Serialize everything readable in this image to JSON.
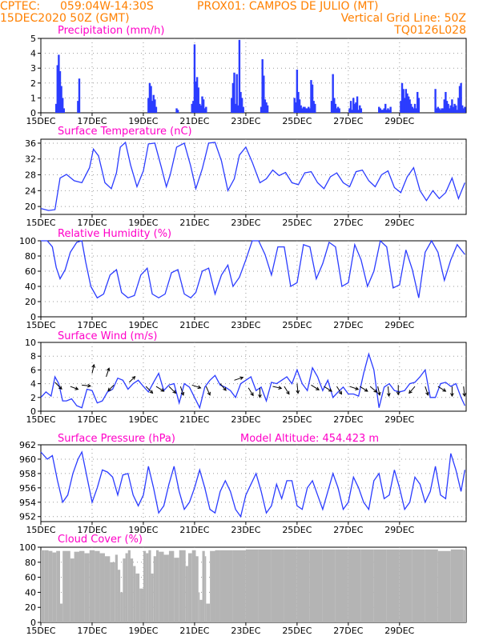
{
  "header": {
    "line1_left": "CPTEC:",
    "line1_coords": "059:04W-14:30S",
    "line1_station": "PROX01: CAMPOS DE JULIO (MT)",
    "line2_left": "15DEC2020 50Z (GMT)",
    "line2_right": "Vertical Grid Line: 50Z",
    "line3_right": "TQ0126L028"
  },
  "colors": {
    "header": "#ff8000",
    "title": "#ff00c8",
    "series": "#2b3cff",
    "cloud": "#b4b4b4",
    "arrow": "#000000"
  },
  "x_labels": [
    "15DEC",
    "17DEC",
    "19DEC",
    "21DEC",
    "23DEC",
    "25DEC",
    "27DEC",
    "29DEC"
  ],
  "chart_data": [
    {
      "type": "bar",
      "title": "Precipitation (mm/h)",
      "ylim": [
        0,
        5
      ],
      "yticks": [
        0,
        1,
        2,
        3,
        4,
        5
      ],
      "grid": true,
      "x_units": "days since 15DEC 00Z",
      "x": [
        0.6,
        0.65,
        0.7,
        0.75,
        0.8,
        0.85,
        0.9,
        1.45,
        1.5,
        4.2,
        4.25,
        4.3,
        4.35,
        4.4,
        4.45,
        4.5,
        5.3,
        5.35,
        5.9,
        5.95,
        6.0,
        6.05,
        6.1,
        6.15,
        6.2,
        6.25,
        6.3,
        6.35,
        6.4,
        6.45,
        7.45,
        7.5,
        7.55,
        7.6,
        7.65,
        7.7,
        7.75,
        7.8,
        7.85,
        7.9,
        8.6,
        8.65,
        8.7,
        8.75,
        8.8,
        8.85,
        9.9,
        9.95,
        10.0,
        10.05,
        10.1,
        10.15,
        10.2,
        10.25,
        10.3,
        10.35,
        10.4,
        10.45,
        10.5,
        10.55,
        10.6,
        10.65,
        10.7,
        11.35,
        11.4,
        11.45,
        11.5,
        11.55,
        11.6,
        11.65,
        12.05,
        12.1,
        12.15,
        12.2,
        12.25,
        12.3,
        12.35,
        12.4,
        12.45,
        12.5,
        13.2,
        13.25,
        13.3,
        13.35,
        13.4,
        13.45,
        13.5,
        13.55,
        13.6,
        13.65,
        14.05,
        14.1,
        14.15,
        14.2,
        14.25,
        14.3,
        14.35,
        14.4,
        14.45,
        14.5,
        14.55,
        14.6,
        14.65,
        14.7,
        14.75,
        15.4,
        15.45,
        15.5,
        15.55,
        15.6,
        15.65,
        15.7,
        15.75,
        15.8,
        15.85,
        15.9,
        15.95,
        16.0,
        16.05,
        16.1,
        16.15,
        16.2,
        16.25,
        16.3,
        16.35,
        16.4,
        16.45,
        16.5,
        16.55
      ],
      "values": [
        0.6,
        3.2,
        3.9,
        2.8,
        1.8,
        1.0,
        0.3,
        0.8,
        2.3,
        1.0,
        2.0,
        1.8,
        0.8,
        1.2,
        0.9,
        0.4,
        0.3,
        0.2,
        0.6,
        0.8,
        4.6,
        2.1,
        2.4,
        1.7,
        0.6,
        0.5,
        1.1,
        0.9,
        0.3,
        0.4,
        1.0,
        2.0,
        2.7,
        0.6,
        2.6,
        0.5,
        4.9,
        1.4,
        1.0,
        0.4,
        0.4,
        3.6,
        2.5,
        0.9,
        0.7,
        0.5,
        1.0,
        0.7,
        2.9,
        1.4,
        0.9,
        0.5,
        0.3,
        0.4,
        0.4,
        0.3,
        0.3,
        0.4,
        0.3,
        2.2,
        1.9,
        0.8,
        0.6,
        0.8,
        2.6,
        1.0,
        0.6,
        0.3,
        0.4,
        0.3,
        0.3,
        0.8,
        0.2,
        1.0,
        0.6,
        0.7,
        1.1,
        0.2,
        0.5,
        0.3,
        0.4,
        0.3,
        0.2,
        0.2,
        0.3,
        0.6,
        0.2,
        0.3,
        0.2,
        0.4,
        0.8,
        2.0,
        1.6,
        1.0,
        1.6,
        1.3,
        1.1,
        0.9,
        0.6,
        0.4,
        0.3,
        0.6,
        0.3,
        1.4,
        1.0,
        1.6,
        0.3,
        0.4,
        0.3,
        0.2,
        0.3,
        0.3,
        0.9,
        1.4,
        0.8,
        0.6,
        0.3,
        0.5,
        0.9,
        0.4,
        0.6,
        0.5,
        0.2,
        1.0,
        1.8,
        2.0,
        0.5,
        0.3,
        0.4
      ]
    },
    {
      "type": "line",
      "title": "Surface Temperature (nC)",
      "ylim": [
        18,
        37
      ],
      "yticks": [
        20,
        24,
        28,
        32,
        36
      ],
      "grid": true,
      "x_units": "days since 15DEC 00Z",
      "x": [
        0.0,
        0.3,
        0.55,
        0.75,
        1.0,
        1.3,
        1.6,
        1.9,
        2.05,
        2.25,
        2.5,
        2.75,
        2.95,
        3.1,
        3.3,
        3.5,
        3.75,
        4.0,
        4.2,
        4.45,
        4.7,
        4.9,
        5.05,
        5.3,
        5.6,
        5.85,
        6.05,
        6.3,
        6.55,
        6.8,
        7.05,
        7.3,
        7.55,
        7.75,
        8.0,
        8.25,
        8.55,
        8.8,
        9.05,
        9.3,
        9.55,
        9.8,
        10.05,
        10.3,
        10.55,
        10.8,
        11.05,
        11.3,
        11.55,
        11.8,
        12.05,
        12.3,
        12.55,
        12.8,
        13.05,
        13.3,
        13.55,
        13.8,
        14.05,
        14.3,
        14.55,
        14.8,
        15.05,
        15.3,
        15.55,
        15.8,
        16.05,
        16.3,
        16.55
      ],
      "values": [
        19.5,
        19.0,
        19.2,
        27.2,
        28.1,
        26.5,
        26.0,
        29.8,
        34.5,
        32.8,
        26.0,
        24.5,
        28.5,
        35.0,
        36.2,
        30.5,
        25.0,
        29.0,
        35.8,
        36.0,
        30.0,
        25.0,
        28.0,
        35.0,
        36.0,
        30.2,
        24.5,
        29.5,
        36.0,
        36.2,
        31.5,
        24.0,
        27.0,
        33.0,
        35.0,
        31.2,
        26.0,
        27.0,
        29.2,
        27.8,
        28.6,
        26.0,
        25.5,
        28.5,
        28.8,
        26.0,
        24.5,
        27.5,
        28.5,
        26.0,
        25.0,
        28.8,
        29.2,
        26.5,
        25.0,
        28.0,
        29.0,
        24.8,
        23.5,
        27.5,
        29.8,
        24.0,
        21.5,
        24.0,
        22.0,
        23.5,
        27.2,
        22.0,
        26.0
      ]
    },
    {
      "type": "line",
      "title": "Relative Humidity (%)",
      "ylim": [
        0,
        100
      ],
      "yticks": [
        0,
        20,
        40,
        60,
        80,
        100
      ],
      "grid": true,
      "x_units": "days since 15DEC 00Z",
      "x": [
        0.0,
        0.25,
        0.45,
        0.6,
        0.75,
        0.95,
        1.15,
        1.4,
        1.6,
        1.75,
        1.95,
        2.2,
        2.45,
        2.7,
        2.95,
        3.15,
        3.4,
        3.65,
        3.9,
        4.15,
        4.35,
        4.6,
        4.85,
        5.1,
        5.35,
        5.6,
        5.85,
        6.05,
        6.3,
        6.55,
        6.8,
        7.05,
        7.3,
        7.5,
        7.75,
        8.0,
        8.25,
        8.5,
        8.75,
        9.0,
        9.25,
        9.5,
        9.75,
        10.0,
        10.25,
        10.5,
        10.75,
        11.0,
        11.25,
        11.5,
        11.75,
        12.0,
        12.25,
        12.5,
        12.75,
        13.0,
        13.25,
        13.5,
        13.75,
        14.0,
        14.25,
        14.5,
        14.75,
        15.0,
        15.25,
        15.5,
        15.75,
        16.0,
        16.25,
        16.55
      ],
      "values": [
        100,
        100,
        92,
        65,
        50,
        62,
        85,
        98,
        100,
        72,
        40,
        25,
        30,
        55,
        62,
        32,
        25,
        28,
        55,
        64,
        30,
        25,
        30,
        58,
        62,
        30,
        25,
        32,
        60,
        64,
        30,
        55,
        68,
        40,
        52,
        75,
        100,
        100,
        82,
        55,
        92,
        92,
        40,
        45,
        95,
        92,
        50,
        70,
        98,
        92,
        40,
        45,
        95,
        75,
        40,
        60,
        100,
        92,
        38,
        42,
        88,
        62,
        25,
        85,
        100,
        85,
        48,
        75,
        95,
        82
      ]
    },
    {
      "type": "line",
      "title": "Surface Wind (m/s)",
      "ylim": [
        0,
        10
      ],
      "yticks": [
        0,
        2,
        4,
        6,
        8,
        10
      ],
      "grid": true,
      "x_units": "days since 15DEC 00Z",
      "x": [
        0.0,
        0.2,
        0.4,
        0.55,
        0.7,
        0.85,
        1.0,
        1.2,
        1.4,
        1.6,
        1.8,
        2.0,
        2.2,
        2.4,
        2.6,
        2.8,
        3.0,
        3.2,
        3.4,
        3.6,
        3.8,
        4.0,
        4.2,
        4.4,
        4.6,
        4.8,
        5.0,
        5.2,
        5.4,
        5.6,
        5.8,
        6.0,
        6.2,
        6.4,
        6.6,
        6.8,
        7.0,
        7.2,
        7.4,
        7.6,
        7.8,
        8.0,
        8.2,
        8.4,
        8.6,
        8.8,
        9.0,
        9.2,
        9.4,
        9.6,
        9.8,
        10.0,
        10.2,
        10.4,
        10.6,
        10.8,
        11.0,
        11.2,
        11.4,
        11.6,
        11.8,
        12.0,
        12.2,
        12.4,
        12.6,
        12.8,
        13.0,
        13.2,
        13.4,
        13.6,
        13.8,
        14.0,
        14.2,
        14.4,
        14.6,
        14.8,
        15.0,
        15.2,
        15.4,
        15.6,
        15.8,
        16.0,
        16.2,
        16.4,
        16.55
      ],
      "values": [
        2.0,
        2.8,
        2.2,
        5.0,
        4.0,
        1.5,
        1.5,
        1.8,
        0.8,
        0.5,
        3.2,
        3.0,
        1.2,
        1.5,
        2.8,
        3.2,
        4.8,
        4.5,
        3.2,
        4.0,
        4.5,
        3.6,
        2.8,
        4.2,
        5.5,
        3.0,
        3.8,
        4.0,
        1.2,
        4.0,
        3.5,
        2.0,
        0.5,
        3.5,
        4.5,
        5.2,
        3.8,
        3.5,
        3.0,
        2.0,
        4.0,
        4.5,
        5.0,
        3.0,
        3.5,
        1.5,
        4.2,
        4.0,
        4.5,
        5.0,
        4.0,
        6.0,
        4.0,
        3.0,
        6.3,
        5.0,
        3.0,
        4.5,
        2.0,
        2.8,
        3.5,
        2.5,
        2.5,
        2.2,
        5.5,
        8.3,
        6.0,
        0.5,
        3.5,
        4.0,
        3.0,
        2.8,
        3.0,
        4.0,
        4.2,
        5.0,
        6.0,
        2.0,
        2.0,
        4.0,
        4.2,
        3.6,
        4.0,
        2.0,
        0.8
      ],
      "arrows": [
        {
          "x": 0.55,
          "speed": 4.2,
          "u": 0.7,
          "v": -0.7
        },
        {
          "x": 1.15,
          "speed": 3.6,
          "u": 0.8,
          "v": -0.3
        },
        {
          "x": 1.6,
          "speed": 3.8,
          "u": 0.9,
          "v": -0.1
        },
        {
          "x": 2.0,
          "speed": 5.5,
          "u": 0.2,
          "v": 0.9
        },
        {
          "x": 2.55,
          "speed": 5.0,
          "u": 0.3,
          "v": 0.9
        },
        {
          "x": 2.85,
          "speed": 3.8,
          "u": -0.6,
          "v": -0.6
        },
        {
          "x": 3.45,
          "speed": 4.2,
          "u": 0.6,
          "v": 0.6
        },
        {
          "x": 4.1,
          "speed": 3.6,
          "u": 0.7,
          "v": -0.7
        },
        {
          "x": 4.5,
          "speed": 3.6,
          "u": 0.8,
          "v": -0.5
        },
        {
          "x": 5.0,
          "speed": 3.6,
          "u": 0.7,
          "v": -0.7
        },
        {
          "x": 5.45,
          "speed": 3.6,
          "u": 0.3,
          "v": -0.9
        },
        {
          "x": 5.9,
          "speed": 3.8,
          "u": 0.9,
          "v": -0.3
        },
        {
          "x": 6.45,
          "speed": 3.6,
          "u": 0.4,
          "v": -0.9
        },
        {
          "x": 7.0,
          "speed": 4.0,
          "u": 0.6,
          "v": -0.7
        },
        {
          "x": 7.55,
          "speed": 4.5,
          "u": 0.9,
          "v": 0.3
        },
        {
          "x": 8.1,
          "speed": 3.4,
          "u": 0.5,
          "v": -0.8
        },
        {
          "x": 8.55,
          "speed": 3.4,
          "u": 0.0,
          "v": -1.0
        },
        {
          "x": 9.05,
          "speed": 3.6,
          "u": 0.9,
          "v": -0.2
        },
        {
          "x": 9.5,
          "speed": 3.6,
          "u": 0.5,
          "v": -0.8
        },
        {
          "x": 10.0,
          "speed": 4.0,
          "u": 0.1,
          "v": -1.0
        },
        {
          "x": 10.55,
          "speed": 3.8,
          "u": 0.8,
          "v": -0.5
        },
        {
          "x": 11.05,
          "speed": 3.6,
          "u": 0.8,
          "v": -0.5
        },
        {
          "x": 11.55,
          "speed": 3.6,
          "u": 0.5,
          "v": -0.8
        },
        {
          "x": 12.05,
          "speed": 3.6,
          "u": 0.9,
          "v": -0.3
        },
        {
          "x": 12.45,
          "speed": 3.6,
          "u": 0.8,
          "v": -0.5
        },
        {
          "x": 12.85,
          "speed": 3.6,
          "u": 0.7,
          "v": -0.6
        },
        {
          "x": 13.15,
          "speed": 3.6,
          "u": 0.2,
          "v": -0.9
        },
        {
          "x": 13.55,
          "speed": 3.6,
          "u": 0.1,
          "v": -1.0
        },
        {
          "x": 13.95,
          "speed": 3.8,
          "u": 0.0,
          "v": -1.0
        },
        {
          "x": 14.6,
          "speed": 3.6,
          "u": -0.6,
          "v": -0.7
        },
        {
          "x": 15.0,
          "speed": 3.6,
          "u": 0.3,
          "v": -0.9
        },
        {
          "x": 15.5,
          "speed": 3.6,
          "u": 0.8,
          "v": -0.5
        },
        {
          "x": 16.05,
          "speed": 3.6,
          "u": 0.0,
          "v": -1.0
        },
        {
          "x": 16.5,
          "speed": 3.6,
          "u": 0.1,
          "v": -1.0
        }
      ]
    },
    {
      "type": "line",
      "title": "Surface Pressure (hPa)",
      "annotation": "Model Altitude: 454.423  m",
      "ylim": [
        951.3,
        962
      ],
      "yticks": [
        952,
        954,
        956,
        958,
        960,
        962
      ],
      "grid": true,
      "x_units": "days since 15DEC 00Z",
      "x": [
        0.0,
        0.25,
        0.45,
        0.65,
        0.85,
        1.05,
        1.25,
        1.45,
        1.6,
        1.8,
        2.0,
        2.2,
        2.4,
        2.6,
        2.8,
        3.0,
        3.2,
        3.4,
        3.6,
        3.8,
        4.0,
        4.2,
        4.4,
        4.6,
        4.8,
        5.0,
        5.2,
        5.4,
        5.6,
        5.8,
        6.0,
        6.2,
        6.4,
        6.6,
        6.8,
        7.0,
        7.2,
        7.4,
        7.6,
        7.8,
        8.0,
        8.2,
        8.4,
        8.6,
        8.8,
        9.0,
        9.2,
        9.4,
        9.6,
        9.8,
        10.0,
        10.2,
        10.4,
        10.6,
        10.8,
        11.0,
        11.2,
        11.4,
        11.6,
        11.8,
        12.0,
        12.2,
        12.4,
        12.6,
        12.8,
        13.0,
        13.2,
        13.4,
        13.6,
        13.8,
        14.0,
        14.2,
        14.4,
        14.6,
        14.8,
        15.0,
        15.2,
        15.4,
        15.6,
        15.8,
        16.0,
        16.2,
        16.4,
        16.55
      ],
      "values": [
        961.0,
        960.0,
        960.5,
        957.0,
        954.0,
        955.0,
        958.0,
        960.0,
        961.0,
        957.5,
        954.0,
        956.0,
        958.5,
        958.2,
        957.5,
        955.0,
        957.8,
        958.0,
        955.0,
        953.5,
        955.0,
        959.0,
        956.0,
        952.5,
        953.5,
        956.5,
        959.0,
        955.5,
        953.0,
        954.0,
        956.0,
        958.5,
        956.0,
        953.0,
        952.5,
        955.5,
        957.0,
        955.5,
        953.0,
        952.0,
        955.0,
        956.5,
        958.0,
        955.5,
        952.5,
        953.5,
        956.5,
        954.5,
        957.0,
        957.0,
        953.5,
        953.0,
        956.0,
        957.0,
        955.0,
        953.0,
        955.5,
        958.0,
        956.0,
        953.0,
        954.0,
        957.5,
        956.0,
        954.0,
        953.0,
        957.0,
        958.0,
        954.5,
        955.0,
        958.5,
        956.0,
        953.0,
        954.0,
        957.5,
        956.5,
        954.0,
        955.5,
        959.0,
        955.0,
        954.5,
        960.8,
        958.5,
        955.5,
        958.5
      ]
    },
    {
      "type": "area",
      "title": "Cloud Cover (%)",
      "ylim": [
        0,
        100
      ],
      "yticks": [
        0,
        20,
        40,
        60,
        80,
        100
      ],
      "grid": true,
      "x_units": "days since 15DEC 00Z",
      "x": [
        0.0,
        0.15,
        0.3,
        0.45,
        0.6,
        0.75,
        0.85,
        1.0,
        1.15,
        1.3,
        1.5,
        1.7,
        1.9,
        2.1,
        2.3,
        2.5,
        2.7,
        2.9,
        3.0,
        3.1,
        3.2,
        3.3,
        3.4,
        3.5,
        3.6,
        3.7,
        3.85,
        4.0,
        4.1,
        4.2,
        4.3,
        4.4,
        4.5,
        4.6,
        4.8,
        5.0,
        5.2,
        5.4,
        5.55,
        5.65,
        5.75,
        5.9,
        6.05,
        6.15,
        6.2,
        6.3,
        6.4,
        6.45,
        6.6,
        6.8,
        7.0,
        7.5,
        8.0,
        8.5,
        9.0,
        9.5,
        10.0,
        10.5,
        11.0,
        11.5,
        12.0,
        12.5,
        13.0,
        13.5,
        14.0,
        14.5,
        15.0,
        15.5,
        16.0,
        16.5,
        16.55
      ],
      "values": [
        96,
        96,
        95,
        93,
        95,
        25,
        95,
        95,
        85,
        94,
        95,
        92,
        96,
        95,
        92,
        88,
        80,
        90,
        70,
        40,
        85,
        92,
        96,
        85,
        75,
        65,
        45,
        95,
        92,
        96,
        65,
        88,
        96,
        94,
        90,
        95,
        86,
        96,
        96,
        75,
        92,
        96,
        88,
        40,
        30,
        95,
        88,
        25,
        95,
        96,
        96,
        96,
        97,
        97,
        97,
        97,
        97,
        97,
        97,
        97,
        97,
        97,
        97,
        97,
        97,
        97,
        97,
        95,
        97,
        96,
        97
      ]
    }
  ]
}
